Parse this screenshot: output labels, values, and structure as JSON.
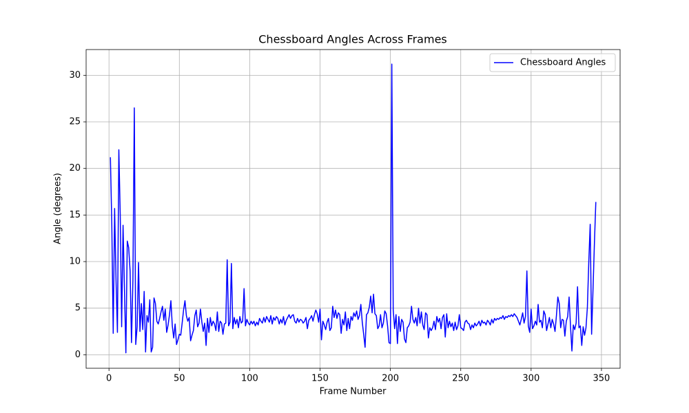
{
  "chart_data": {
    "type": "line",
    "title": "Chessboard Angles Across Frames",
    "xlabel": "Frame Number",
    "ylabel": "Angle (degrees)",
    "x": [
      1,
      2,
      3,
      4,
      5,
      6,
      7,
      8,
      9,
      10,
      11,
      12,
      13,
      14,
      15,
      16,
      17,
      18,
      19,
      20,
      21,
      22,
      23,
      24,
      25,
      26,
      27,
      28,
      29,
      30,
      31,
      32,
      33,
      34,
      35,
      36,
      37,
      38,
      39,
      40,
      41,
      42,
      43,
      44,
      45,
      46,
      47,
      48,
      49,
      50,
      51,
      52,
      53,
      54,
      55,
      56,
      57,
      58,
      59,
      60,
      61,
      62,
      63,
      64,
      65,
      66,
      67,
      68,
      69,
      70,
      71,
      72,
      73,
      74,
      75,
      76,
      77,
      78,
      79,
      80,
      81,
      82,
      83,
      84,
      85,
      86,
      87,
      88,
      89,
      90,
      91,
      92,
      93,
      94,
      95,
      96,
      97,
      98,
      99,
      100,
      101,
      102,
      103,
      104,
      105,
      106,
      107,
      108,
      109,
      110,
      111,
      112,
      113,
      114,
      115,
      116,
      117,
      118,
      119,
      120,
      121,
      122,
      123,
      124,
      125,
      126,
      127,
      128,
      129,
      130,
      131,
      132,
      133,
      134,
      135,
      136,
      137,
      138,
      139,
      140,
      141,
      142,
      143,
      144,
      145,
      146,
      147,
      148,
      149,
      150,
      151,
      152,
      153,
      154,
      155,
      156,
      157,
      158,
      159,
      160,
      161,
      162,
      163,
      164,
      165,
      166,
      167,
      168,
      169,
      170,
      171,
      172,
      173,
      174,
      175,
      176,
      177,
      178,
      179,
      180,
      181,
      182,
      183,
      184,
      185,
      186,
      187,
      188,
      189,
      190,
      191,
      192,
      193,
      194,
      195,
      196,
      197,
      198,
      199,
      200,
      201,
      202,
      203,
      204,
      205,
      206,
      207,
      208,
      209,
      210,
      211,
      212,
      213,
      214,
      215,
      216,
      217,
      218,
      219,
      220,
      221,
      222,
      223,
      224,
      225,
      226,
      227,
      228,
      229,
      230,
      231,
      232,
      233,
      234,
      235,
      236,
      237,
      238,
      239,
      240,
      241,
      242,
      243,
      244,
      245,
      246,
      247,
      248,
      249,
      250,
      251,
      252,
      253,
      254,
      255,
      256,
      257,
      258,
      259,
      260,
      261,
      262,
      263,
      264,
      265,
      266,
      267,
      268,
      269,
      270,
      271,
      272,
      273,
      274,
      275,
      276,
      277,
      278,
      279,
      280,
      281,
      282,
      283,
      284,
      285,
      286,
      287,
      288,
      289,
      290,
      291,
      292,
      293,
      294,
      295,
      296,
      297,
      298,
      299,
      300,
      301,
      302,
      303,
      304,
      305,
      306,
      307,
      308,
      309,
      310,
      311,
      312,
      313,
      314,
      315,
      316,
      317,
      318,
      319,
      320,
      321,
      322,
      323,
      324,
      325,
      326,
      327,
      328,
      329,
      330,
      331,
      332,
      333,
      334,
      335,
      336,
      337,
      338,
      339,
      340,
      341,
      342,
      343,
      344,
      345,
      346
    ],
    "series": [
      {
        "name": "Chessboard Angles",
        "color": "#0000ff",
        "values": [
          21.2,
          14,
          2.3,
          15.7,
          8,
          2.4,
          22,
          15,
          3,
          13.9,
          7,
          0.2,
          12.2,
          11.5,
          9,
          1.3,
          8,
          26.5,
          1.1,
          3,
          9.9,
          2.5,
          5.5,
          2.7,
          6.8,
          0.3,
          4.2,
          3.5,
          5.9,
          0.3,
          0.8,
          6.1,
          5.5,
          3.6,
          3.3,
          3.9,
          4.6,
          5.2,
          3.7,
          4.9,
          2.4,
          3.2,
          4.3,
          5.8,
          3.1,
          1.8,
          3.3,
          1.1,
          1.6,
          2.2,
          2.1,
          3.4,
          4.8,
          5.8,
          4.2,
          3.6,
          4,
          1.5,
          2.1,
          2.6,
          4.2,
          4.8,
          3,
          3.4,
          4.9,
          3.5,
          2.5,
          3.4,
          1,
          3.9,
          2.4,
          4,
          3.1,
          3.6,
          3.3,
          2.6,
          4.6,
          2.5,
          3.6,
          3.4,
          2.2,
          3.3,
          3.4,
          10.2,
          3.1,
          3.5,
          9.8,
          2.8,
          4,
          3.3,
          3.8,
          2.9,
          4.1,
          3.4,
          3.6,
          7.1,
          3.1,
          3.8,
          3.4,
          3.2,
          3.6,
          3.3,
          3.6,
          3.1,
          3.5,
          3.2,
          3.9,
          3.6,
          3.4,
          4,
          3.5,
          4.1,
          3.8,
          3.5,
          4.2,
          3.3,
          4,
          3.7,
          4.1,
          3.9,
          3.3,
          3.8,
          3.4,
          4.1,
          3.2,
          3.7,
          4,
          4.3,
          3.9,
          4.2,
          4.3,
          3.6,
          3.4,
          3.9,
          3.5,
          3.8,
          3.7,
          3.4,
          3.6,
          4,
          2.8,
          3.7,
          3.9,
          4.2,
          3.6,
          4.3,
          4.8,
          4.4,
          3.5,
          4.9,
          1.6,
          3.6,
          3.2,
          2.7,
          3.5,
          3.9,
          2.6,
          2.9,
          5.2,
          4,
          4.8,
          3.9,
          4.5,
          4.3,
          2.3,
          3.8,
          3.2,
          4.6,
          2.6,
          3.9,
          2.8,
          4.1,
          3.7,
          4.5,
          4.1,
          4.7,
          3.8,
          4.2,
          5.4,
          3.5,
          2.2,
          0.8,
          4.3,
          4.5,
          5.1,
          6.3,
          4.5,
          6.5,
          4.4,
          4.2,
          2.8,
          3.1,
          4.3,
          2.9,
          3.4,
          4.7,
          4.4,
          3.1,
          1.3,
          1.2,
          31.2,
          4.8,
          2.8,
          4.3,
          1.2,
          4.1,
          2.5,
          3.8,
          3.5,
          1.7,
          1.3,
          2.9,
          3.1,
          3.5,
          5.2,
          3.8,
          3.4,
          4,
          3.1,
          5,
          3.4,
          4.6,
          3.2,
          2.7,
          4.5,
          4.3,
          1.8,
          2.9,
          2.6,
          2.9,
          3.6,
          2.7,
          4.1,
          3.5,
          3.9,
          2.8,
          4,
          4.3,
          1.9,
          4.4,
          2.9,
          3.6,
          3,
          3.4,
          2.6,
          3.5,
          2.7,
          3.1,
          4.3,
          2.9,
          2.8,
          2.6,
          3.5,
          3.7,
          3.4,
          3.3,
          2.7,
          3.2,
          2.9,
          3.4,
          3.1,
          3.3,
          3.6,
          3.1,
          3.7,
          3.4,
          3.5,
          3.2,
          3.7,
          3.5,
          3.2,
          3.8,
          3.4,
          3.9,
          3.7,
          3.9,
          3.8,
          4,
          3.9,
          4.2,
          3.8,
          4.1,
          4,
          4.2,
          4.1,
          4.3,
          4.1,
          4.4,
          4.2,
          4,
          3.6,
          3.2,
          3.8,
          4.5,
          3.4,
          4.1,
          9,
          3.1,
          2.4,
          4.9,
          2.8,
          3.1,
          3.6,
          3.2,
          5.4,
          3.5,
          3.7,
          2.9,
          4.7,
          4.3,
          2.6,
          3.3,
          4,
          2.9,
          3.8,
          3.3,
          2.5,
          4.2,
          6.2,
          5.5,
          2.9,
          3.8,
          3.7,
          2,
          3.6,
          4.1,
          6.2,
          3.1,
          0.4,
          3.2,
          2.7,
          3.4,
          7.3,
          2.9,
          3.1,
          1,
          3,
          2.1,
          2.9,
          5.1,
          10,
          14,
          2.2,
          7,
          12,
          16.4
        ]
      }
    ],
    "xlim": [
      -16.25,
      363.25
    ],
    "ylim": [
      -1.45,
      32.76
    ],
    "xticks": [
      0,
      50,
      100,
      150,
      200,
      250,
      300,
      350
    ],
    "yticks": [
      0,
      5,
      10,
      15,
      20,
      25,
      30
    ],
    "grid": true,
    "legend": "upper right"
  }
}
